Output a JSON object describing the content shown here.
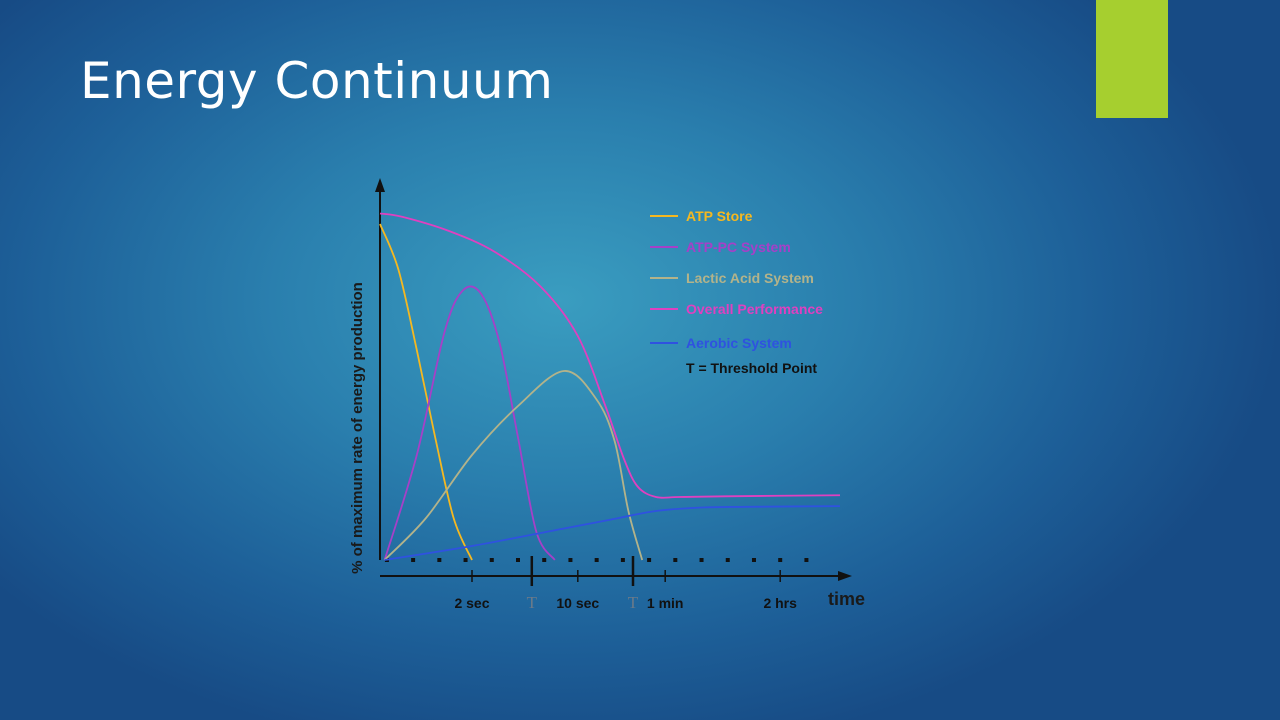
{
  "slide": {
    "title": "Energy Continuum",
    "accent_color": "#a6cf2f"
  },
  "chart_data": {
    "type": "line",
    "title": "",
    "ylabel": "% of maximum rate of energy production",
    "xlabel": "time",
    "ylim": [
      0,
      100
    ],
    "xlim": [
      0,
      10
    ],
    "x_ticks": [
      {
        "x": 2.0,
        "label": "2 sec"
      },
      {
        "x": 4.3,
        "label": "10 sec"
      },
      {
        "x": 6.2,
        "label": "1 min"
      },
      {
        "x": 8.7,
        "label": "2 hrs"
      }
    ],
    "thresholds": [
      {
        "x": 3.3,
        "label": "T"
      },
      {
        "x": 5.5,
        "label": "T"
      }
    ],
    "legend_position": "top-right",
    "legend_note": "T = Threshold Point",
    "series": [
      {
        "name": "ATP Store",
        "color": "#f5b820",
        "x": [
          0,
          0.4,
          0.8,
          1.2,
          1.6,
          2.0
        ],
        "y": [
          96,
          83,
          60,
          35,
          12,
          0
        ]
      },
      {
        "name": "ATP-PC System",
        "color": "#a640c8",
        "x": [
          0.1,
          0.8,
          1.4,
          1.8,
          2.2,
          2.6,
          3.0,
          3.4,
          3.8
        ],
        "y": [
          0,
          30,
          65,
          77,
          76,
          62,
          35,
          8,
          0
        ]
      },
      {
        "name": "Lactic Acid System",
        "color": "#b3b38a",
        "x": [
          0.1,
          1,
          2,
          3,
          4,
          4.7,
          5.1,
          5.4,
          5.7
        ],
        "y": [
          0,
          12,
          30,
          44,
          54,
          46,
          34,
          14,
          0
        ]
      },
      {
        "name": "Overall Performance",
        "color": "#e040c0",
        "x": [
          0,
          0.5,
          1.5,
          2.5,
          3.5,
          4.3,
          4.9,
          5.3,
          5.6,
          6.0,
          6.5,
          7.5,
          10
        ],
        "y": [
          99,
          98,
          94,
          88,
          78,
          64,
          44,
          29,
          21,
          18,
          18,
          18.2,
          18.5
        ]
      },
      {
        "name": "Aerobic System",
        "color": "#2f52e0",
        "x": [
          0.1,
          2,
          4,
          5,
          6,
          7,
          8,
          10
        ],
        "y": [
          0,
          4,
          9,
          11.5,
          14,
          15,
          15.2,
          15.4
        ]
      }
    ]
  }
}
